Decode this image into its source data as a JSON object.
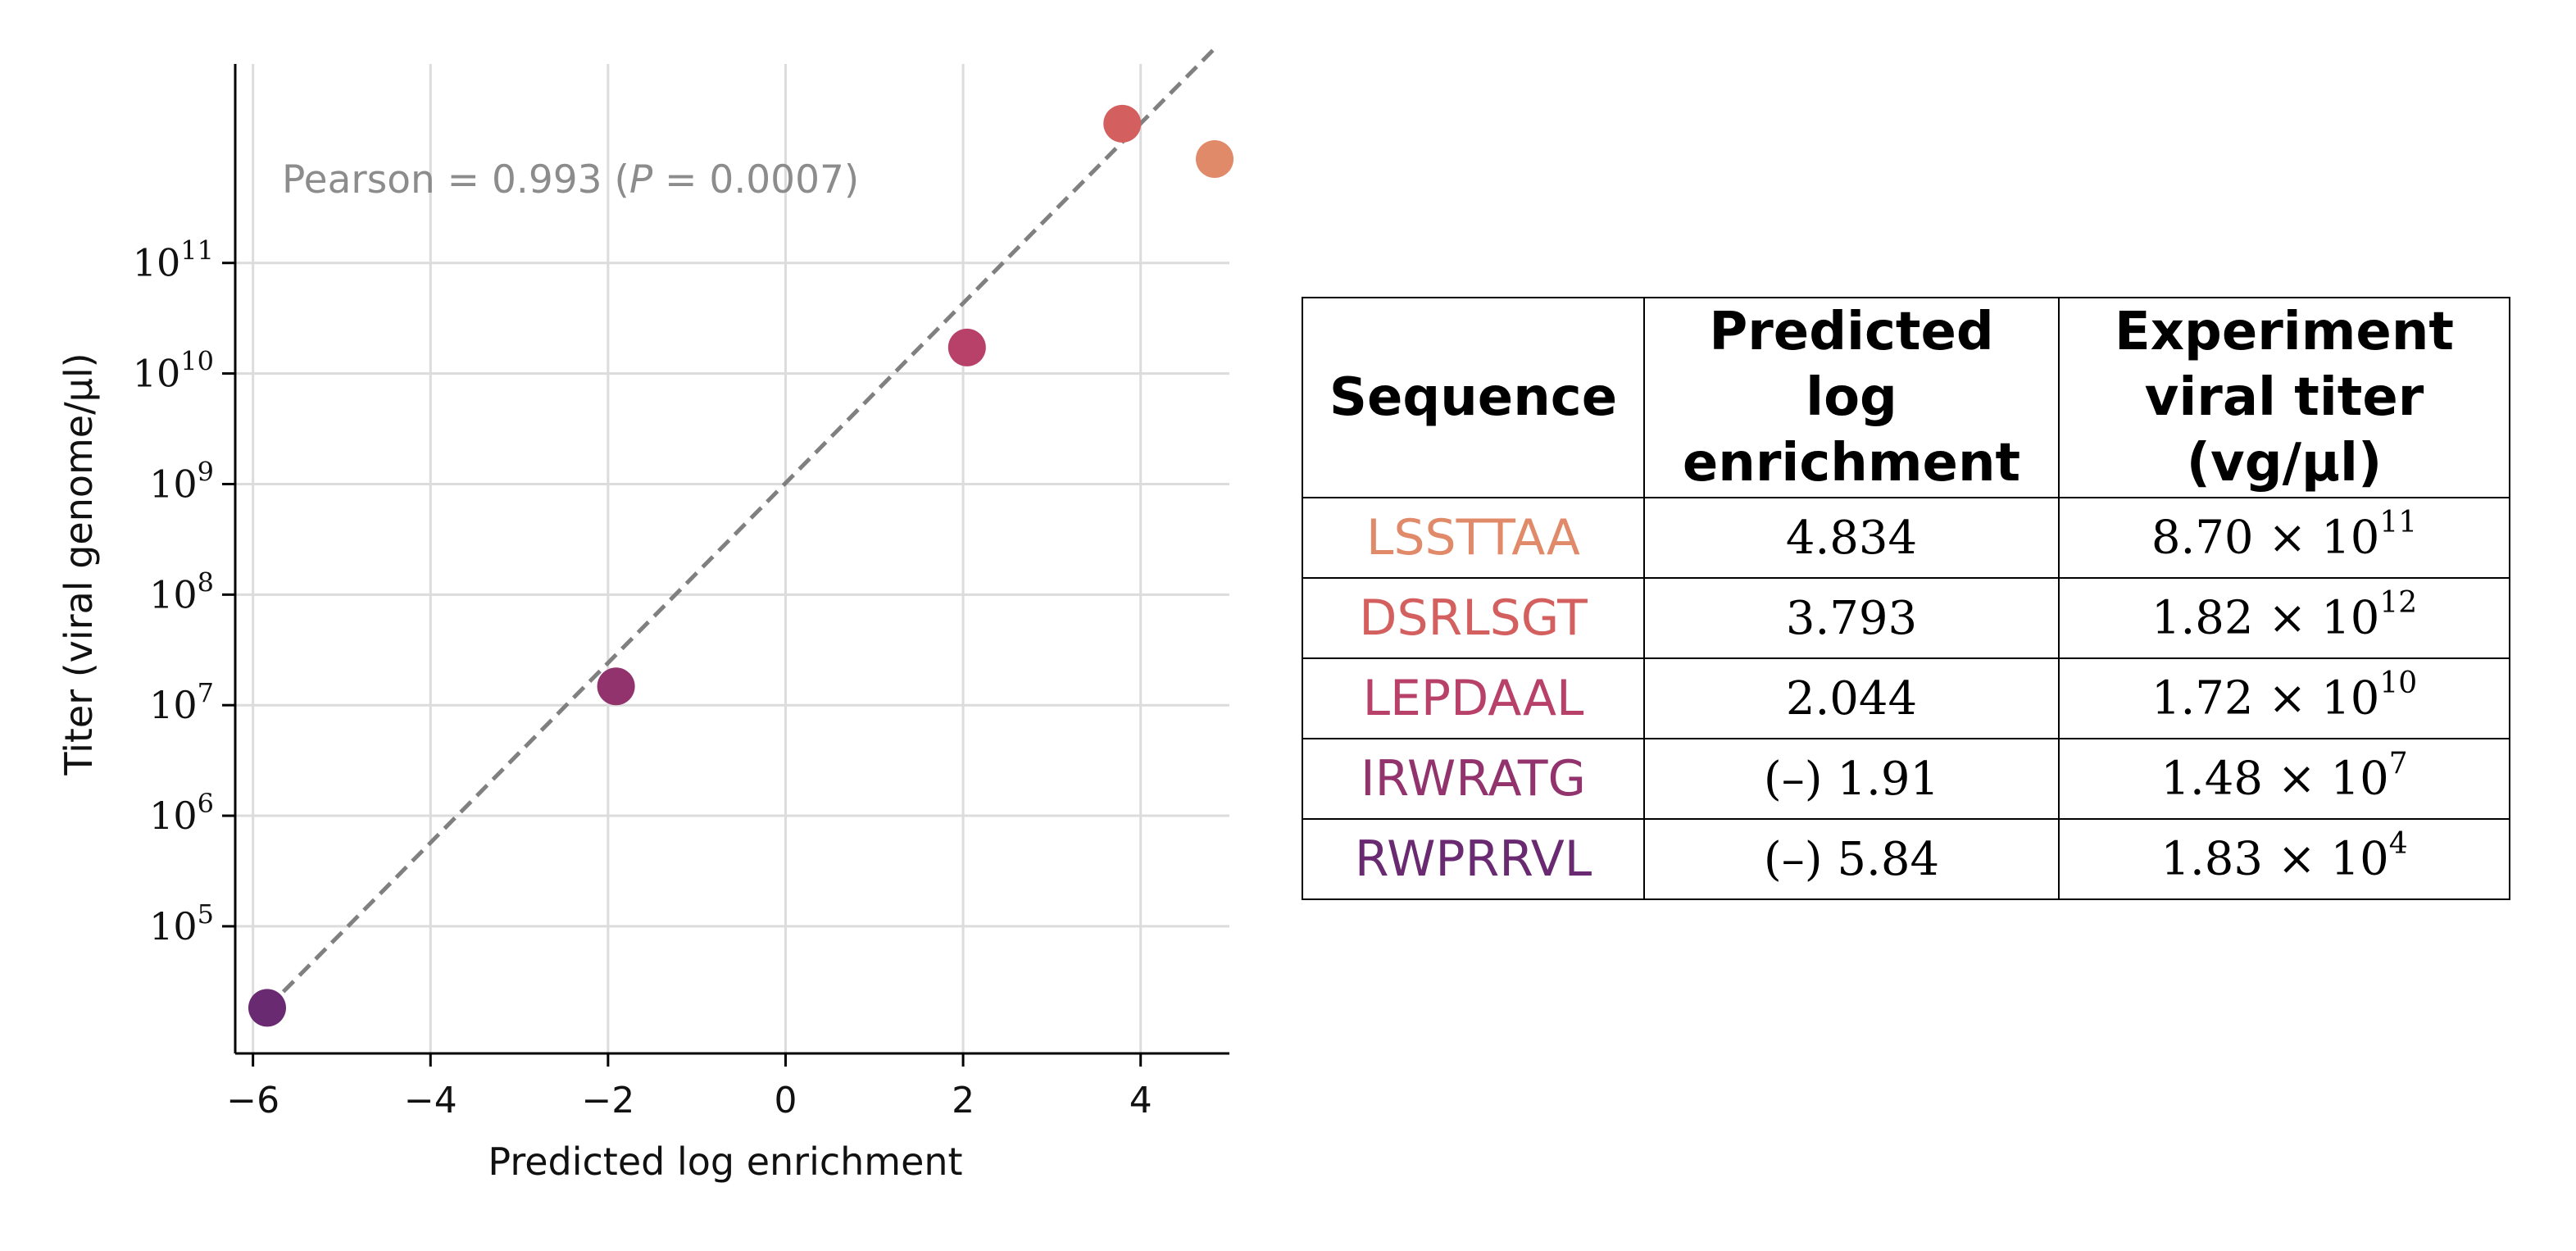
{
  "chart_data": {
    "type": "scatter",
    "title": "",
    "xlabel": "Predicted log enrichment",
    "ylabel": "Titer (viral genome/μl)",
    "xlim": [
      -6.2,
      5.0
    ],
    "ylim_log10": [
      3.85,
      12.8
    ],
    "xticks": [
      -6,
      -4,
      -2,
      0,
      2,
      4
    ],
    "xtick_labels": [
      "−6",
      "−4",
      "−2",
      "0",
      "2",
      "4"
    ],
    "yticks_log10": [
      5,
      6,
      7,
      8,
      9,
      10,
      11
    ],
    "ytick_base": "10",
    "ytick_exponents": [
      "5",
      "6",
      "7",
      "8",
      "9",
      "10",
      "11"
    ],
    "grid": true,
    "annotation": {
      "prefix": "Pearson = 0.993 (",
      "p_symbol": "P",
      "suffix": " = 0.0007)"
    },
    "fit_line": {
      "x": [
        -5.84,
        4.834
      ],
      "log10_y": [
        4.26,
        12.94
      ],
      "style": "dashed",
      "color": "#808080"
    },
    "points": [
      {
        "label": "LSSTTAA",
        "x": 4.834,
        "y": 870000000000.0,
        "color": "#e08a6a"
      },
      {
        "label": "DSRLSGT",
        "x": 3.793,
        "y": 1820000000000.0,
        "color": "#d35f5f"
      },
      {
        "label": "LEPDAAL",
        "x": 2.044,
        "y": 17200000000.0,
        "color": "#b8416a"
      },
      {
        "label": "IRWRATG",
        "x": -1.91,
        "y": 14800000.0,
        "color": "#92336e"
      },
      {
        "label": "RWPRRVL",
        "x": -5.84,
        "y": 18300.0,
        "color": "#6a2a72"
      }
    ]
  },
  "table": {
    "headers": [
      [
        "Sequence"
      ],
      [
        "Predicted",
        "log",
        "enrichment"
      ],
      [
        "Experiment",
        "viral titer",
        "(vg/μl)"
      ]
    ],
    "rows": [
      {
        "sequence": "LSSTTAA",
        "color": "#e08a6a",
        "predicted": "4.834",
        "titer_mantissa": "8.70 × 10",
        "titer_exp": "11"
      },
      {
        "sequence": "DSRLSGT",
        "color": "#d35f5f",
        "predicted": "3.793",
        "titer_mantissa": "1.82 × 10",
        "titer_exp": "12"
      },
      {
        "sequence": "LEPDAAL",
        "color": "#b8416a",
        "predicted": "2.044",
        "titer_mantissa": "1.72 × 10",
        "titer_exp": "10"
      },
      {
        "sequence": "IRWRATG",
        "color": "#92336e",
        "predicted": "(–) 1.91",
        "titer_mantissa": "1.48 × 10",
        "titer_exp": "7"
      },
      {
        "sequence": "RWPRRVL",
        "color": "#6a2a72",
        "predicted": "(–) 5.84",
        "titer_mantissa": "1.83 × 10",
        "titer_exp": "4"
      }
    ]
  }
}
